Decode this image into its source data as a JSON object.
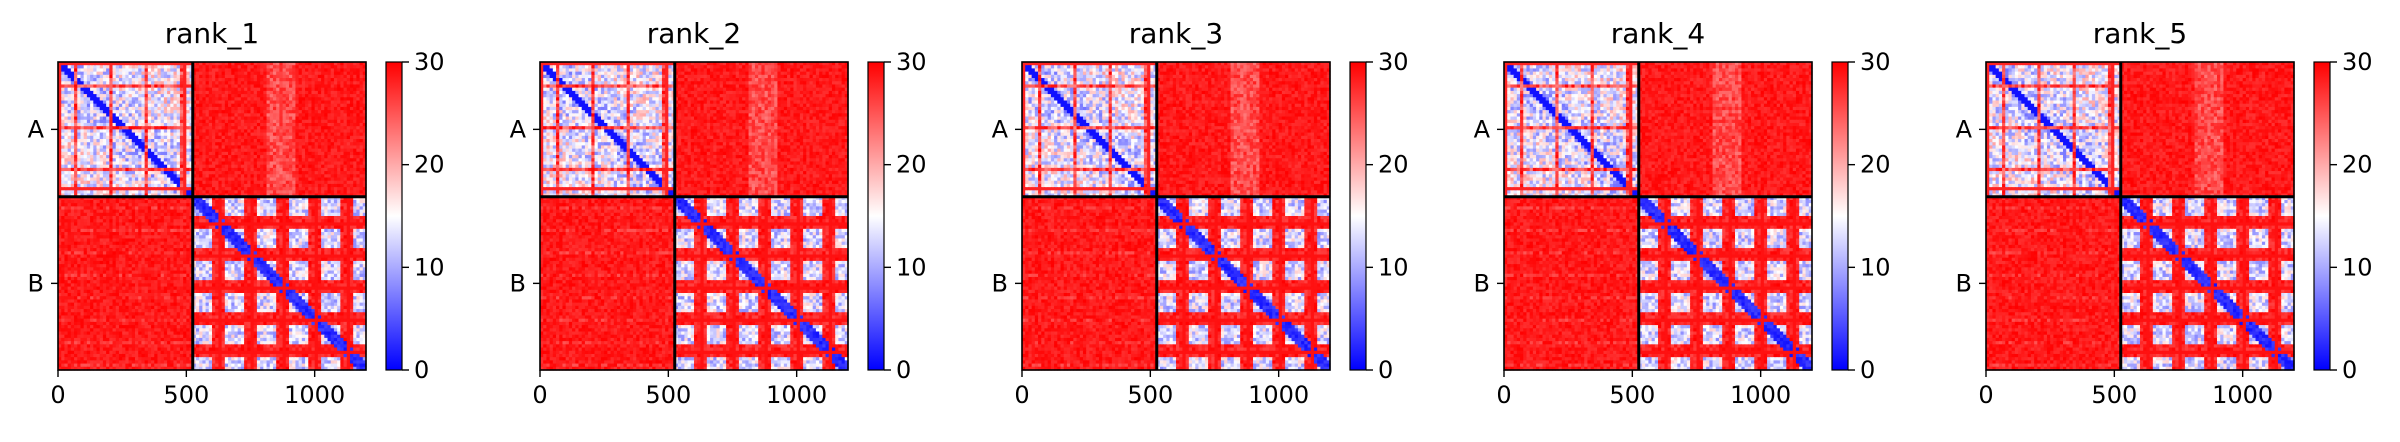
{
  "figure": {
    "panels": [
      {
        "title": "rank_1"
      },
      {
        "title": "rank_2"
      },
      {
        "title": "rank_3"
      },
      {
        "title": "rank_4"
      },
      {
        "title": "rank_5"
      }
    ]
  },
  "chart_data": [
    {
      "type": "heatmap",
      "title": "rank_1",
      "xlim": [
        0,
        1200
      ],
      "x_ticks": [
        0,
        500,
        1000
      ],
      "x_tick_labels": [
        "0",
        "500",
        "1000"
      ],
      "y_tick_labels": [
        "A",
        "B"
      ],
      "chain_boundary": 525,
      "colorbar": {
        "min": 0,
        "max": 30,
        "ticks": [
          0,
          10,
          20,
          30
        ],
        "colors": [
          "#0000ff",
          "#ffffff",
          "#ff0000"
        ]
      }
    },
    {
      "type": "heatmap",
      "title": "rank_2",
      "xlim": [
        0,
        1200
      ],
      "x_ticks": [
        0,
        500,
        1000
      ],
      "x_tick_labels": [
        "0",
        "500",
        "1000"
      ],
      "y_tick_labels": [
        "A",
        "B"
      ],
      "chain_boundary": 525,
      "colorbar": {
        "min": 0,
        "max": 30,
        "ticks": [
          0,
          10,
          20,
          30
        ],
        "colors": [
          "#0000ff",
          "#ffffff",
          "#ff0000"
        ]
      }
    },
    {
      "type": "heatmap",
      "title": "rank_3",
      "xlim": [
        0,
        1200
      ],
      "x_ticks": [
        0,
        500,
        1000
      ],
      "x_tick_labels": [
        "0",
        "500",
        "1000"
      ],
      "y_tick_labels": [
        "A",
        "B"
      ],
      "chain_boundary": 525,
      "colorbar": {
        "min": 0,
        "max": 30,
        "ticks": [
          0,
          10,
          20,
          30
        ],
        "colors": [
          "#0000ff",
          "#ffffff",
          "#ff0000"
        ]
      }
    },
    {
      "type": "heatmap",
      "title": "rank_4",
      "xlim": [
        0,
        1200
      ],
      "x_ticks": [
        0,
        500,
        1000
      ],
      "x_tick_labels": [
        "0",
        "500",
        "1000"
      ],
      "y_tick_labels": [
        "A",
        "B"
      ],
      "chain_boundary": 525,
      "colorbar": {
        "min": 0,
        "max": 30,
        "ticks": [
          0,
          10,
          20,
          30
        ],
        "colors": [
          "#0000ff",
          "#ffffff",
          "#ff0000"
        ]
      }
    },
    {
      "type": "heatmap",
      "title": "rank_5",
      "xlim": [
        0,
        1200
      ],
      "x_ticks": [
        0,
        500,
        1000
      ],
      "x_tick_labels": [
        "0",
        "500",
        "1000"
      ],
      "y_tick_labels": [
        "A",
        "B"
      ],
      "chain_boundary": 525,
      "colorbar": {
        "min": 0,
        "max": 30,
        "ticks": [
          0,
          10,
          20,
          30
        ],
        "colors": [
          "#0000ff",
          "#ffffff",
          "#ff0000"
        ]
      }
    }
  ]
}
